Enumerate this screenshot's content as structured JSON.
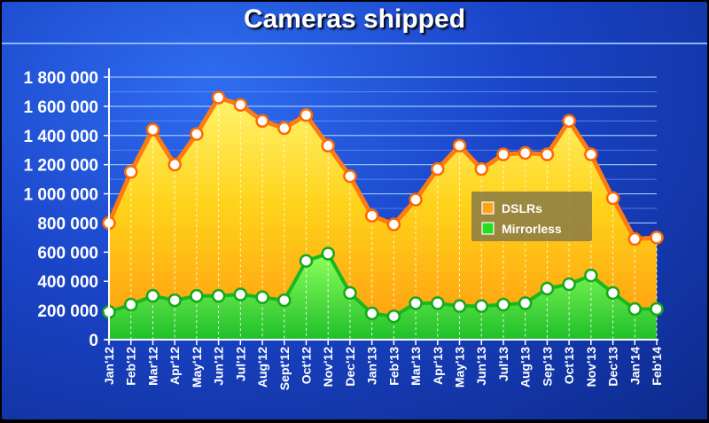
{
  "chart_data": {
    "type": "area",
    "title": "Cameras shipped",
    "categories": [
      "Jan'12",
      "Feb'12",
      "Mar'12",
      "Apr'12",
      "May'12",
      "Jun'12",
      "Jul'12",
      "Aug'12",
      "Sept'12",
      "Oct'12",
      "Nov'12",
      "Dec'12",
      "Jan'13",
      "Feb'13",
      "Mar'13",
      "Apr'13",
      "May'13",
      "Jun'13",
      "Jul'13",
      "Aug'13",
      "Sep'13",
      "Oct'13",
      "Nov'13",
      "Dec'13",
      "Jan'14",
      "Feb'14"
    ],
    "series": [
      {
        "name": "DSLRs",
        "color": "#ff8c1a",
        "values": [
          800000,
          1150000,
          1440000,
          1200000,
          1410000,
          1660000,
          1610000,
          1500000,
          1450000,
          1540000,
          1330000,
          1120000,
          850000,
          790000,
          960000,
          1170000,
          1330000,
          1170000,
          1270000,
          1280000,
          1270000,
          1500000,
          1270000,
          970000,
          690000,
          700000
        ]
      },
      {
        "name": "Mirrorless",
        "color": "#22cc22",
        "values": [
          190000,
          240000,
          300000,
          270000,
          300000,
          300000,
          310000,
          290000,
          270000,
          540000,
          590000,
          320000,
          180000,
          160000,
          250000,
          250000,
          230000,
          230000,
          240000,
          250000,
          350000,
          380000,
          440000,
          320000,
          210000,
          210000
        ]
      }
    ],
    "y_ticks": [
      "0",
      "200 000",
      "400 000",
      "600 000",
      "800 000",
      "1 000 000",
      "1 200 000",
      "1 400 000",
      "1 600 000",
      "1 800 000"
    ],
    "y_tick_values": [
      0,
      200000,
      400000,
      600000,
      800000,
      1000000,
      1200000,
      1400000,
      1600000,
      1800000
    ],
    "ylim": [
      0,
      1800000
    ],
    "xlabel": "",
    "ylabel": "",
    "grid": true,
    "legend": {
      "position": "right",
      "entries": [
        "DSLRs",
        "Mirrorless"
      ]
    }
  }
}
